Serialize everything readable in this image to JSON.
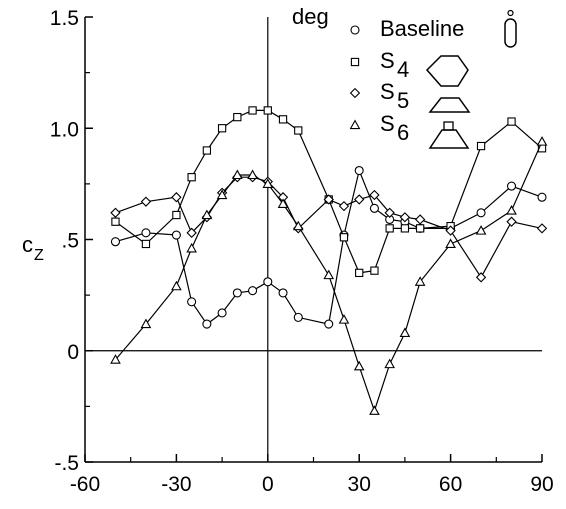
{
  "chart_data": {
    "type": "line",
    "title": "",
    "xlabel": "deg",
    "ylabel": "c",
    "ylabel_sub": "Z",
    "xlim": [
      -60,
      90
    ],
    "ylim": [
      -0.5,
      1.5
    ],
    "x_ticks": [
      -60,
      -30,
      0,
      30,
      60,
      90
    ],
    "x_tick_labels": [
      "-60",
      "-30",
      "0",
      "30",
      "60",
      "90"
    ],
    "y_ticks": [
      -0.5,
      0,
      0.5,
      1.0,
      1.5
    ],
    "y_tick_labels": [
      "-.5",
      "0",
      ".5",
      "1.0",
      "1.5"
    ],
    "grid": false,
    "legend_position": "top-right",
    "colors": {
      "line": "#000000",
      "background": "#ffffff"
    },
    "series": [
      {
        "name": "Baseline",
        "legend_sub": "",
        "marker": "circle",
        "shape_icon": "capsule-icon",
        "x": [
          -50,
          -40,
          -30,
          -25,
          -20,
          -15,
          -10,
          -5,
          0,
          5,
          10,
          20,
          25,
          30,
          35,
          40,
          45,
          50,
          60,
          70,
          80,
          90
        ],
        "y": [
          0.49,
          0.53,
          0.52,
          0.22,
          0.12,
          0.17,
          0.26,
          0.27,
          0.31,
          0.26,
          0.15,
          0.12,
          0.52,
          0.81,
          0.64,
          0.59,
          0.58,
          0.55,
          0.55,
          0.62,
          0.74,
          0.69
        ]
      },
      {
        "name": "S",
        "legend_sub": "4",
        "marker": "square",
        "shape_icon": "hexagon-icon",
        "x": [
          -50,
          -40,
          -30,
          -25,
          -20,
          -15,
          -10,
          -5,
          0,
          5,
          10,
          20,
          25,
          30,
          35,
          40,
          45,
          50,
          60,
          70,
          80,
          90
        ],
        "y": [
          0.58,
          0.48,
          0.61,
          0.78,
          0.9,
          1.0,
          1.05,
          1.08,
          1.08,
          1.04,
          0.99,
          0.68,
          0.51,
          0.35,
          0.36,
          0.55,
          0.55,
          0.55,
          0.56,
          0.92,
          1.03,
          0.91
        ]
      },
      {
        "name": "S",
        "legend_sub": "5",
        "marker": "diamond",
        "shape_icon": "trapezoid-icon",
        "x": [
          -50,
          -40,
          -30,
          -25,
          -20,
          -15,
          -10,
          -5,
          0,
          5,
          10,
          20,
          25,
          30,
          35,
          40,
          45,
          50,
          60,
          70,
          80,
          90
        ],
        "y": [
          0.62,
          0.67,
          0.69,
          0.53,
          0.6,
          0.71,
          0.78,
          0.78,
          0.76,
          0.69,
          0.55,
          0.68,
          0.65,
          0.68,
          0.7,
          0.62,
          0.6,
          0.59,
          0.54,
          0.33,
          0.58,
          0.55
        ]
      },
      {
        "name": "S",
        "legend_sub": "6",
        "marker": "triangle",
        "shape_icon": "tall-trapezoid-icon",
        "x": [
          -50,
          -40,
          -30,
          -25,
          -20,
          -15,
          -10,
          -5,
          0,
          5,
          10,
          20,
          25,
          30,
          35,
          40,
          45,
          50,
          60,
          70,
          80,
          90
        ],
        "y": [
          -0.04,
          0.12,
          0.29,
          0.46,
          0.61,
          0.7,
          0.79,
          0.79,
          0.75,
          0.66,
          0.56,
          0.34,
          0.14,
          -0.07,
          -0.27,
          -0.06,
          0.08,
          0.31,
          0.48,
          0.54,
          0.63,
          0.94
        ]
      }
    ]
  }
}
